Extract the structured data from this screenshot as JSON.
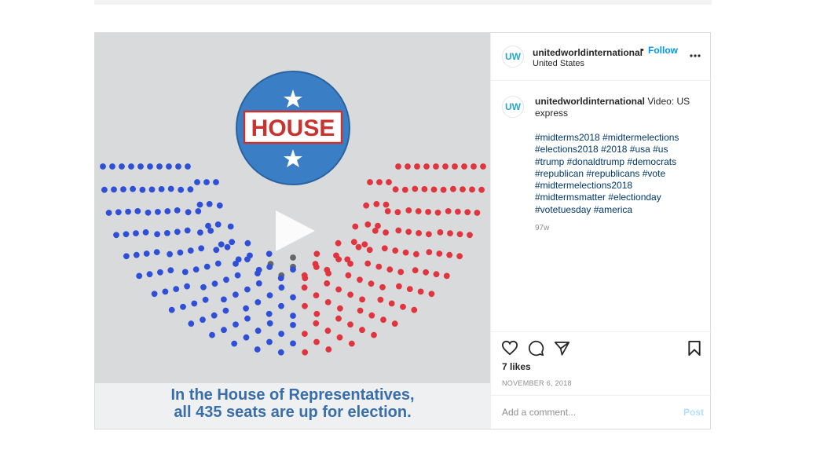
{
  "post": {
    "account": {
      "username": "unitedworldinternational",
      "follow_label": "Follow",
      "separator": "•",
      "location": "United States",
      "avatar_text": "UW",
      "more_icon": "more-horizontal-icon"
    },
    "media": {
      "badge_text": "HOUSE",
      "caption_line1": "In the House of Representatives,",
      "caption_line2": "all 435 seats are up for election.",
      "play_icon": "play-icon",
      "colors": {
        "democrat": "#2f4fd6",
        "republican": "#e0343f",
        "vacant": "#666666",
        "badge": "#3a7fc6"
      }
    },
    "caption": {
      "username": "unitedworldinternational",
      "text": "Video: US express",
      "hashtags": "#midterms2018 #midtermelections #elections2018 #2018 #usa #us #trump #donaldtrump #democrats #republican #republicans #vote #midtermelections2018 #midtermsmatter #electionday #votetuesday #america",
      "age": "97w"
    },
    "actions": {
      "likes": "7 likes",
      "date": "NOVEMBER 6, 2018",
      "comment_placeholder": "Add a comment...",
      "post_label": "Post"
    }
  }
}
